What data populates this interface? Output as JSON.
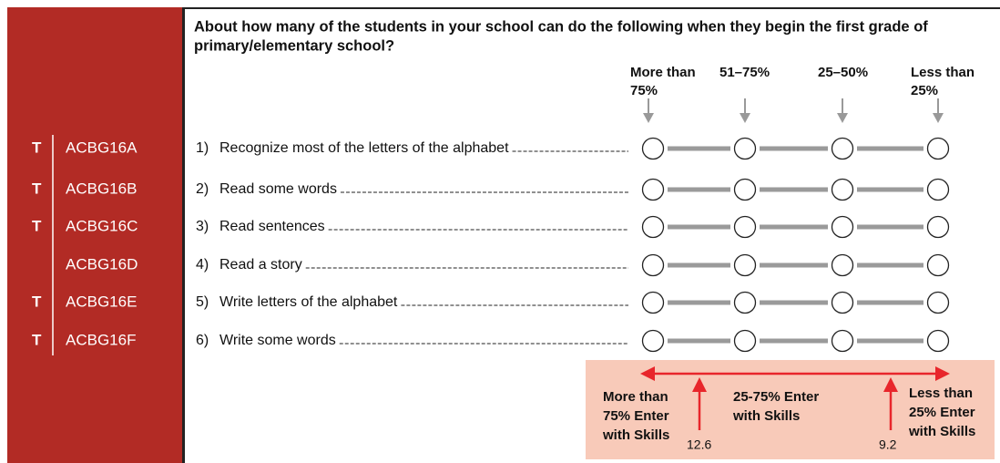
{
  "question": {
    "lines": [
      "About how many of the students in your school can do the following when they begin the first grade of",
      "primary/elementary school?"
    ]
  },
  "columns": [
    {
      "lines": [
        "More than",
        "75%"
      ]
    },
    {
      "lines": [
        "51–75%"
      ]
    },
    {
      "lines": [
        "25–50%"
      ]
    },
    {
      "lines": [
        "Less than",
        "25%"
      ]
    }
  ],
  "items": [
    {
      "flag": "T",
      "code": "ACBG16A",
      "number": "1)",
      "text": "Recognize most of the letters of the alphabet"
    },
    {
      "flag": "T",
      "code": "ACBG16B",
      "number": "2)",
      "text": "Read some words"
    },
    {
      "flag": "T",
      "code": "ACBG16C",
      "number": "3)",
      "text": "Read sentences"
    },
    {
      "code": "ACBG16D",
      "number": "4)",
      "text": "Read a story"
    },
    {
      "flag": "T",
      "code": "ACBG16E",
      "number": "5)",
      "text": "Write letters of the alphabet"
    },
    {
      "flag": "T",
      "code": "ACBG16F",
      "number": "6)",
      "text": "Write some words"
    }
  ],
  "legend": {
    "groups": [
      {
        "lines": [
          "More than",
          "75% Enter",
          "with Skills"
        ]
      },
      {
        "lines": [
          "25-75% Enter",
          "with Skills"
        ]
      },
      {
        "lines": [
          "Less than",
          "25% Enter",
          "with Skills"
        ]
      }
    ],
    "cutpoints": [
      "12.6",
      "9.2"
    ]
  }
}
